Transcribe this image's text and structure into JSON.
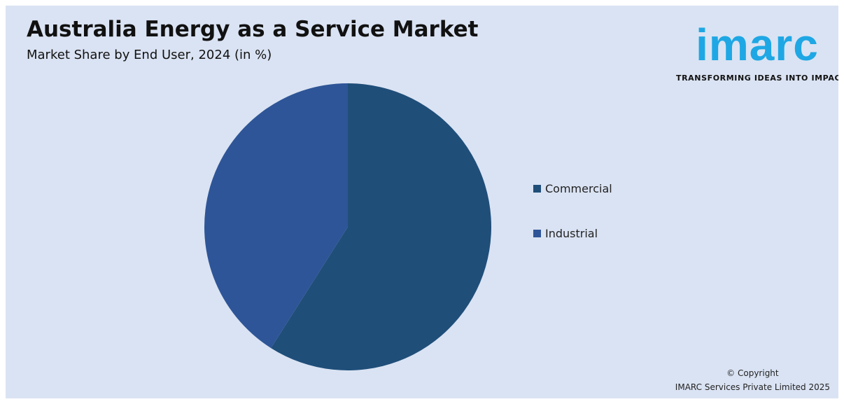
{
  "header": {
    "title": "Australia Energy as a Service Market",
    "subtitle": "Market Share by End User, 2024 (in %)"
  },
  "logo": {
    "wordmark": "imarc",
    "tagline": "TRANSFORMING IDEAS INTO IMPACT",
    "color": "#1ea7e4"
  },
  "chart_data": {
    "type": "pie",
    "title": "Australia Energy as a Service Market",
    "subtitle": "Market Share by End User, 2024 (in %)",
    "categories": [
      "Commercial",
      "Industrial"
    ],
    "values": [
      59,
      41
    ],
    "colors": [
      "#1f4e79",
      "#2e5597"
    ],
    "start_angle_deg": 0,
    "direction": "clockwise",
    "legend": "right",
    "data_labels": false
  },
  "footer": {
    "copyright_line1": "© Copyright",
    "copyright_line2": "IMARC Services Private Limited 2025"
  }
}
